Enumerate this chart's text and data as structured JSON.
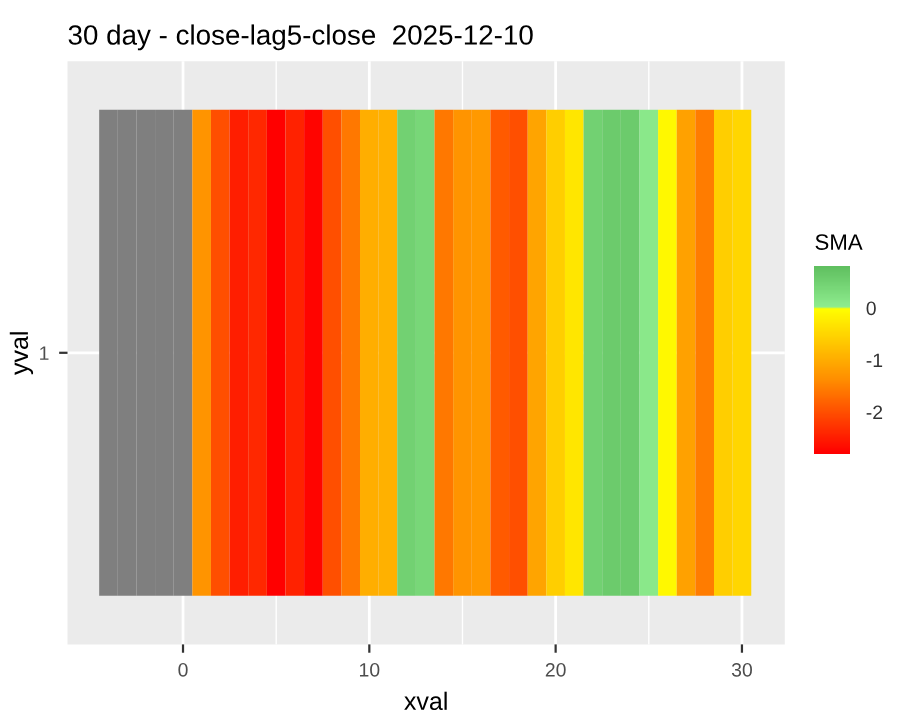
{
  "chart_data": {
    "type": "heatmap",
    "title": "30 day - close-lag5-close  2025-12-10",
    "xlabel": "xval",
    "ylabel": "yval",
    "clabel": "SMA",
    "x": [
      -4,
      -3,
      -2,
      -1,
      0,
      1,
      2,
      3,
      4,
      5,
      6,
      7,
      8,
      9,
      10,
      11,
      12,
      13,
      14,
      15,
      16,
      17,
      18,
      19,
      20,
      21,
      22,
      23,
      24,
      25,
      26,
      27,
      28,
      29,
      30
    ],
    "y_categories": [
      "1"
    ],
    "cells": [
      [
        null,
        null,
        null,
        null,
        null,
        -1.3,
        -2.0,
        -2.5,
        -2.4,
        -2.8,
        -2.45,
        -2.75,
        -2.0,
        -1.6,
        -1.0,
        -0.95,
        0.5,
        0.4,
        -1.6,
        -1.3,
        -1.25,
        -1.9,
        -2.0,
        -1.1,
        -0.6,
        -0.3,
        0.5,
        0.6,
        0.6,
        0.1,
        -0.1,
        -1.15,
        -1.55,
        -0.6,
        -0.5
      ]
    ],
    "xlim": [
      -6.2,
      32.3
    ],
    "xticks": [
      0,
      10,
      20,
      30
    ],
    "clim": [
      -2.8,
      0.8
    ],
    "cticks": [
      -2,
      -1,
      0
    ],
    "grid": true
  }
}
